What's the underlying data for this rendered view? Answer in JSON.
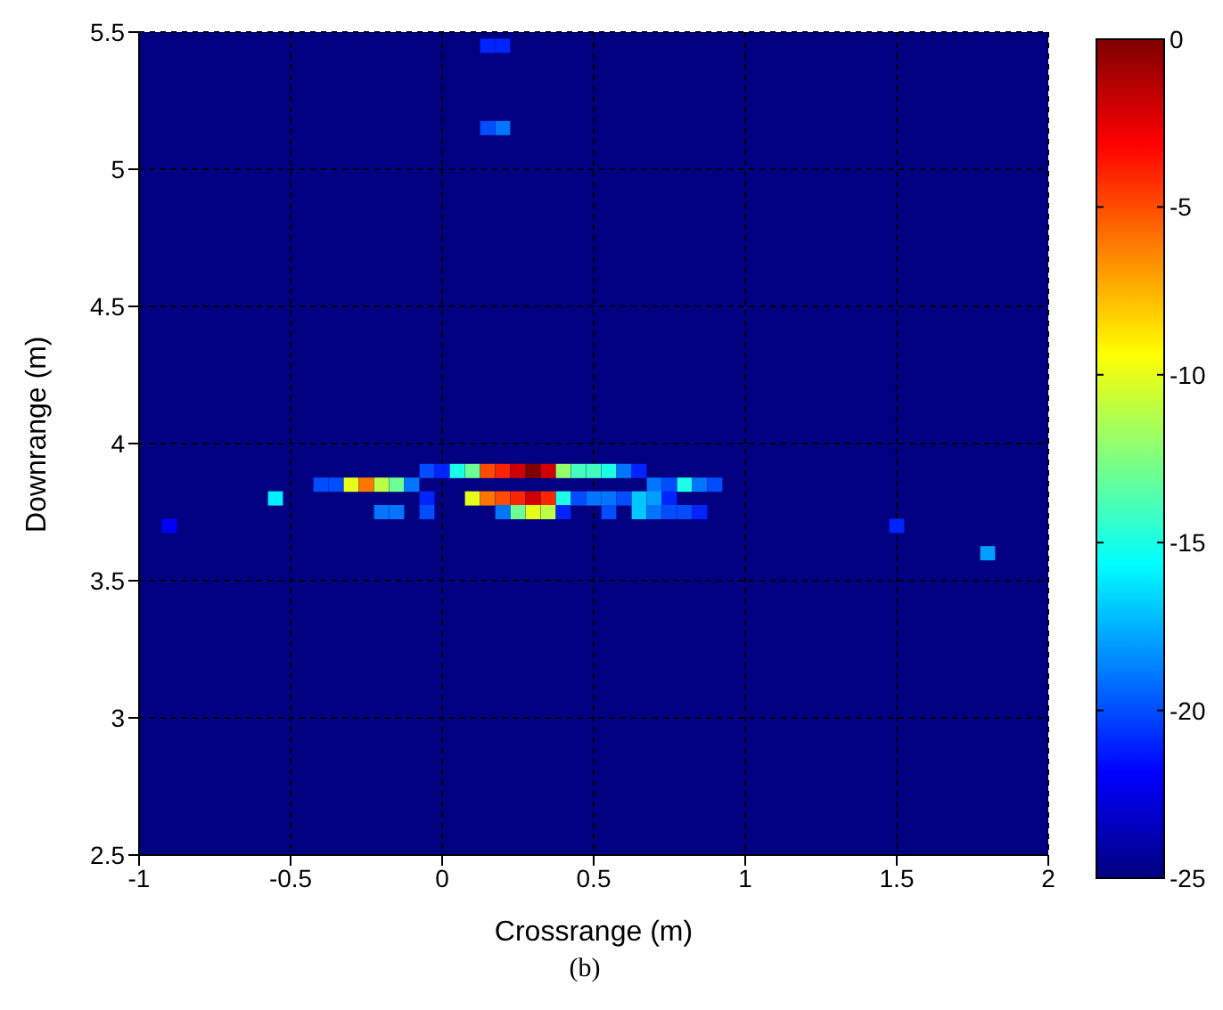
{
  "chart_data": {
    "type": "scatter",
    "xlabel": "Crossrange (m)",
    "ylabel": "Downrange (m)",
    "annotations": [
      "(b)"
    ],
    "xlim": [
      -1,
      2
    ],
    "xticks": [
      -1,
      -0.5,
      0,
      0.5,
      1,
      1.5,
      2
    ],
    "ylim": [
      2.5,
      5.5
    ],
    "yticks": [
      2.5,
      3,
      3.5,
      4,
      4.5,
      5,
      5.5
    ],
    "clim": [
      -25,
      0
    ],
    "cticks": [
      -25,
      -20,
      -15,
      -10,
      -5,
      0
    ],
    "grid": true,
    "marker": "square",
    "series": [
      {
        "x": [
          -0.05,
          0,
          0.05,
          0.1,
          0.15,
          0.2,
          0.25,
          0.3,
          0.35,
          0.4,
          0.45,
          0.5,
          0.55,
          0.6,
          0.65,
          -0.4,
          -0.35,
          -0.3,
          -0.25,
          -0.2,
          -0.15,
          -0.1,
          0.7,
          0.75,
          0.8,
          0.85,
          0.9,
          -0.55,
          -0.05,
          0.1,
          0.15,
          0.2,
          0.25,
          0.3,
          0.35,
          0.4,
          0.45,
          0.5,
          0.55,
          0.6,
          0.65,
          0.7,
          0.75,
          -0.2,
          -0.15,
          -0.05,
          0.2,
          0.25,
          0.3,
          0.35,
          0.4,
          0.55,
          0.65,
          0.7,
          0.75,
          0.8,
          0.85,
          -0.9,
          1.5,
          1.8,
          0.15,
          0.2,
          0.15,
          0.2
        ],
        "values": [
          3.9,
          3.9,
          3.9,
          3.9,
          3.9,
          3.9,
          3.9,
          3.9,
          3.9,
          3.9,
          3.9,
          3.9,
          3.9,
          3.9,
          3.9,
          3.85,
          3.85,
          3.85,
          3.85,
          3.85,
          3.85,
          3.85,
          3.85,
          3.85,
          3.85,
          3.85,
          3.85,
          3.8,
          3.8,
          3.8,
          3.8,
          3.8,
          3.8,
          3.8,
          3.8,
          3.8,
          3.8,
          3.8,
          3.8,
          3.8,
          3.8,
          3.8,
          3.8,
          3.75,
          3.75,
          3.75,
          3.75,
          3.75,
          3.75,
          3.75,
          3.75,
          3.75,
          3.75,
          3.75,
          3.75,
          3.75,
          3.75,
          3.7,
          3.7,
          3.6,
          5.45,
          5.45,
          5.15,
          5.15
        ],
        "cvalues": [
          -20,
          -21,
          -15,
          -13,
          -5,
          -4,
          -2,
          0,
          -2,
          -12,
          -14,
          -14,
          -15,
          -19,
          -21,
          -20,
          -20,
          -10,
          -6,
          -11,
          -13,
          -19,
          -19,
          -20,
          -15,
          -19,
          -20,
          -16,
          -21,
          -10,
          -6,
          -5,
          -4,
          -2,
          -4,
          -15,
          -20,
          -19,
          -19,
          -20,
          -17,
          -18,
          -21,
          -19,
          -19,
          -20,
          -19,
          -13,
          -10,
          -11,
          -21,
          -20,
          -17,
          -19,
          -20,
          -20,
          -21,
          -22,
          -21,
          -18,
          -21,
          -21,
          -20,
          -19
        ]
      }
    ]
  }
}
